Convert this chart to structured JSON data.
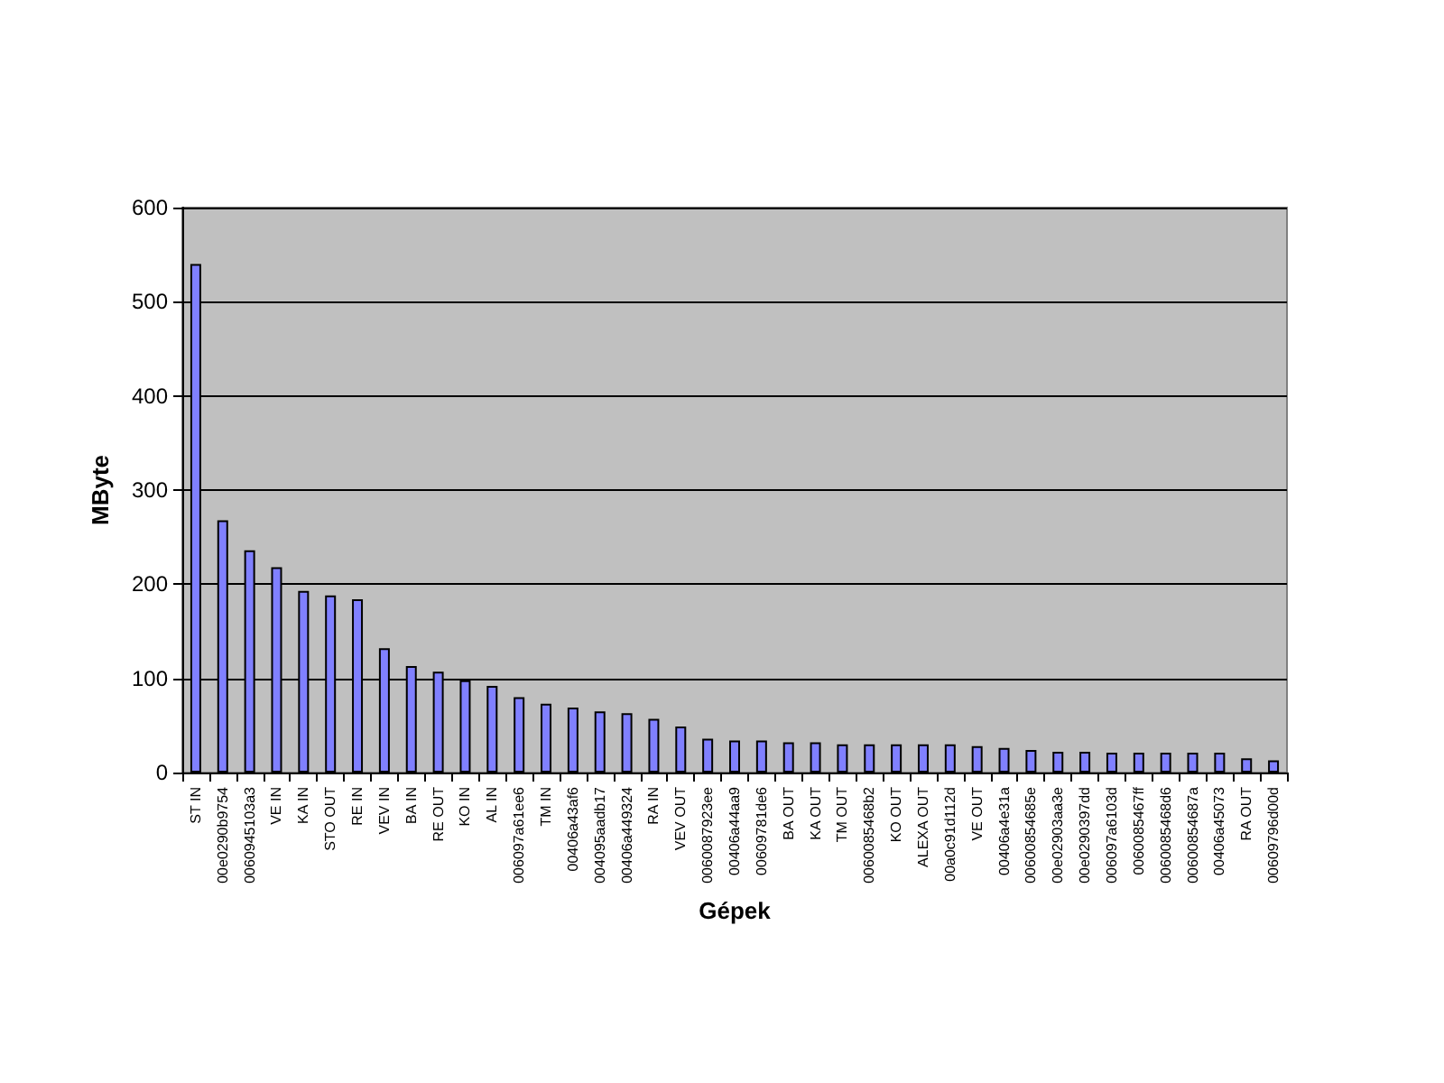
{
  "chart_data": {
    "type": "bar",
    "xlabel": "Gépek",
    "ylabel": "MByte",
    "categories": [
      "ST IN",
      "00e0290b9754",
      "0060945103a3",
      "VE IN",
      "KA IN",
      "STO OUT",
      "RE IN",
      "VEV IN",
      "BA IN",
      "RE OUT",
      "KO IN",
      "AL IN",
      "006097a61ee6",
      "TM IN",
      "00406a43af6",
      "004095aadb17",
      "00406a449324",
      "RA IN",
      "VEV OUT",
      "0060087923ee",
      "00406a44aa9",
      "00609781de6",
      "BA OUT",
      "KA OUT",
      "TM OUT",
      "0060085468b2",
      "KO OUT",
      "ALEXA OUT",
      "00a0c91d112d",
      "VE OUT",
      "00406a4e31a",
      "00600854685e",
      "00e02903aa3e",
      "00e0290397dd",
      "006097a6103d",
      "0060085467ff",
      "0060085468d6",
      "00600854687a",
      "00406a45073",
      "RA OUT",
      "00609796d00d"
    ],
    "values": [
      540,
      268,
      236,
      218,
      193,
      188,
      184,
      132,
      113,
      107,
      98,
      92,
      80,
      73,
      69,
      65,
      63,
      57,
      49,
      36,
      34,
      34,
      32,
      32,
      30,
      30,
      30,
      30,
      30,
      28,
      26,
      24,
      22,
      22,
      21,
      21,
      21,
      21,
      21,
      15,
      13
    ],
    "color": "#8080ff",
    "ylim": [
      0,
      600
    ],
    "yticks": [
      0,
      100,
      200,
      300,
      400,
      500,
      600
    ],
    "grid": "y"
  }
}
